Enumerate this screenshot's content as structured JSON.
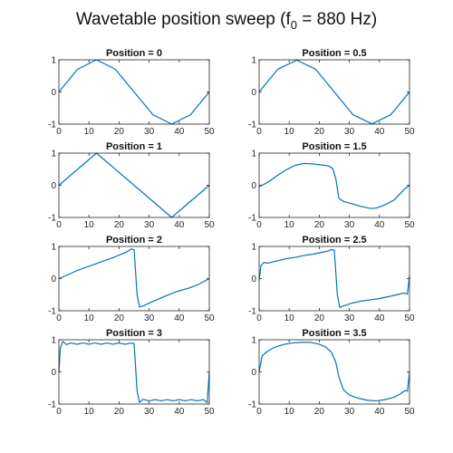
{
  "figure": {
    "title_main": "Wavetable position sweep (f",
    "title_sub": "0",
    "title_tail": " = 880 Hz)"
  },
  "chart_data": [
    {
      "type": "line",
      "title": "Position = 0",
      "xlim": [
        0,
        50
      ],
      "ylim": [
        -1,
        1
      ],
      "xticks": [
        "0",
        "10",
        "20",
        "30",
        "40",
        "50"
      ],
      "yticks": [
        "-1",
        "0",
        "1"
      ],
      "color": "#0072bd",
      "points": [
        [
          0,
          0
        ],
        [
          6.25,
          0.707
        ],
        [
          12.5,
          1
        ],
        [
          18.75,
          0.707
        ],
        [
          25,
          0
        ],
        [
          31.25,
          -0.707
        ],
        [
          37.5,
          -1
        ],
        [
          43.75,
          -0.707
        ],
        [
          50,
          0
        ]
      ]
    },
    {
      "type": "line",
      "title": "Position = 0.5",
      "xlim": [
        0,
        50
      ],
      "ylim": [
        -1,
        1
      ],
      "xticks": [
        "0",
        "10",
        "20",
        "30",
        "40",
        "50"
      ],
      "yticks": [
        "-1",
        "0",
        "1"
      ],
      "color": "#0072bd",
      "points": [
        [
          0,
          0
        ],
        [
          6.25,
          0.71
        ],
        [
          12.5,
          0.99
        ],
        [
          18.75,
          0.71
        ],
        [
          25,
          0
        ],
        [
          31.25,
          -0.71
        ],
        [
          37.5,
          -0.99
        ],
        [
          43.75,
          -0.71
        ],
        [
          50,
          0
        ]
      ]
    },
    {
      "type": "line",
      "title": "Position = 1",
      "xlim": [
        0,
        50
      ],
      "ylim": [
        -1,
        1
      ],
      "xticks": [
        "0",
        "10",
        "20",
        "30",
        "40",
        "50"
      ],
      "yticks": [
        "-1",
        "0",
        "1"
      ],
      "color": "#0072bd",
      "points": [
        [
          0,
          0
        ],
        [
          12.5,
          1
        ],
        [
          37.5,
          -1
        ],
        [
          50,
          0
        ]
      ]
    },
    {
      "type": "line",
      "title": "Position = 1.5",
      "xlim": [
        0,
        50
      ],
      "ylim": [
        -1,
        1
      ],
      "xticks": [
        "0",
        "10",
        "20",
        "30",
        "40",
        "50"
      ],
      "yticks": [
        "-1",
        "0",
        "1"
      ],
      "color": "#0072bd",
      "points": [
        [
          0,
          -0.05
        ],
        [
          3,
          0.1
        ],
        [
          6,
          0.3
        ],
        [
          9,
          0.48
        ],
        [
          12,
          0.62
        ],
        [
          15,
          0.68
        ],
        [
          18,
          0.66
        ],
        [
          21,
          0.63
        ],
        [
          23,
          0.6
        ],
        [
          24.5,
          0.52
        ],
        [
          25.5,
          0.2
        ],
        [
          26.5,
          -0.4
        ],
        [
          28,
          -0.5
        ],
        [
          31,
          -0.58
        ],
        [
          34,
          -0.66
        ],
        [
          37,
          -0.72
        ],
        [
          39,
          -0.71
        ],
        [
          42,
          -0.6
        ],
        [
          45,
          -0.45
        ],
        [
          48,
          -0.15
        ],
        [
          50,
          0.0
        ]
      ]
    },
    {
      "type": "line",
      "title": "Position = 2",
      "xlim": [
        0,
        50
      ],
      "ylim": [
        -1,
        1
      ],
      "xticks": [
        "0",
        "10",
        "20",
        "30",
        "40",
        "50"
      ],
      "yticks": [
        "-1",
        "0",
        "1"
      ],
      "color": "#0072bd",
      "points": [
        [
          0,
          0
        ],
        [
          3,
          0.12
        ],
        [
          6,
          0.25
        ],
        [
          9,
          0.35
        ],
        [
          12,
          0.45
        ],
        [
          15,
          0.55
        ],
        [
          18,
          0.65
        ],
        [
          21,
          0.77
        ],
        [
          23,
          0.85
        ],
        [
          24,
          0.92
        ],
        [
          25,
          0.9
        ],
        [
          26,
          -0.5
        ],
        [
          26.8,
          -0.88
        ],
        [
          28,
          -0.85
        ],
        [
          31,
          -0.72
        ],
        [
          34,
          -0.6
        ],
        [
          37,
          -0.48
        ],
        [
          40,
          -0.38
        ],
        [
          43,
          -0.3
        ],
        [
          46,
          -0.2
        ],
        [
          50,
          0
        ]
      ]
    },
    {
      "type": "line",
      "title": "Position = 2.5",
      "xlim": [
        0,
        50
      ],
      "ylim": [
        -1,
        1
      ],
      "xticks": [
        "0",
        "10",
        "20",
        "30",
        "40",
        "50"
      ],
      "yticks": [
        "-1",
        "0",
        "1"
      ],
      "color": "#0072bd",
      "points": [
        [
          0,
          -0.05
        ],
        [
          0.6,
          0.4
        ],
        [
          1.5,
          0.5
        ],
        [
          3,
          0.48
        ],
        [
          6,
          0.55
        ],
        [
          9,
          0.62
        ],
        [
          12,
          0.66
        ],
        [
          15,
          0.72
        ],
        [
          18,
          0.76
        ],
        [
          21,
          0.82
        ],
        [
          23,
          0.86
        ],
        [
          24,
          0.9
        ],
        [
          25,
          0.88
        ],
        [
          26,
          -0.5
        ],
        [
          26.8,
          -0.9
        ],
        [
          28,
          -0.85
        ],
        [
          31,
          -0.76
        ],
        [
          34,
          -0.7
        ],
        [
          37,
          -0.66
        ],
        [
          40,
          -0.62
        ],
        [
          43,
          -0.56
        ],
        [
          46,
          -0.5
        ],
        [
          48,
          -0.45
        ],
        [
          49.3,
          -0.48
        ],
        [
          50,
          0.1
        ]
      ]
    },
    {
      "type": "line",
      "title": "Position = 3",
      "xlim": [
        0,
        50
      ],
      "ylim": [
        -1,
        1
      ],
      "xticks": [
        "0",
        "10",
        "20",
        "30",
        "40",
        "50"
      ],
      "yticks": [
        "-1",
        "0",
        "1"
      ],
      "color": "#0072bd",
      "points": [
        [
          0,
          0
        ],
        [
          0.5,
          0.75
        ],
        [
          1.3,
          0.95
        ],
        [
          2.5,
          0.85
        ],
        [
          4,
          0.9
        ],
        [
          6,
          0.86
        ],
        [
          8,
          0.9
        ],
        [
          10,
          0.86
        ],
        [
          12,
          0.9
        ],
        [
          14,
          0.86
        ],
        [
          16,
          0.9
        ],
        [
          18,
          0.86
        ],
        [
          20,
          0.9
        ],
        [
          22,
          0.86
        ],
        [
          24,
          0.9
        ],
        [
          25,
          0.88
        ],
        [
          26,
          -0.6
        ],
        [
          26.8,
          -0.95
        ],
        [
          28,
          -0.85
        ],
        [
          30,
          -0.9
        ],
        [
          32,
          -0.86
        ],
        [
          34,
          -0.9
        ],
        [
          36,
          -0.86
        ],
        [
          38,
          -0.9
        ],
        [
          40,
          -0.86
        ],
        [
          42,
          -0.9
        ],
        [
          44,
          -0.86
        ],
        [
          46,
          -0.9
        ],
        [
          48,
          -0.86
        ],
        [
          49.3,
          -0.95
        ],
        [
          50,
          0
        ]
      ]
    },
    {
      "type": "line",
      "title": "Position = 3.5",
      "xlim": [
        0,
        50
      ],
      "ylim": [
        -1,
        1
      ],
      "xticks": [
        "0",
        "10",
        "20",
        "30",
        "40",
        "50"
      ],
      "yticks": [
        "-1",
        "0",
        "1"
      ],
      "color": "#0072bd",
      "points": [
        [
          0,
          0
        ],
        [
          1,
          0.5
        ],
        [
          2.5,
          0.62
        ],
        [
          5,
          0.76
        ],
        [
          8,
          0.85
        ],
        [
          11,
          0.9
        ],
        [
          14,
          0.92
        ],
        [
          17,
          0.92
        ],
        [
          20,
          0.86
        ],
        [
          22,
          0.78
        ],
        [
          24,
          0.62
        ],
        [
          25.5,
          0.3
        ],
        [
          26.5,
          -0.15
        ],
        [
          28,
          -0.55
        ],
        [
          30,
          -0.72
        ],
        [
          33,
          -0.82
        ],
        [
          36,
          -0.88
        ],
        [
          39,
          -0.9
        ],
        [
          42,
          -0.86
        ],
        [
          45,
          -0.78
        ],
        [
          47,
          -0.68
        ],
        [
          48.5,
          -0.58
        ],
        [
          49.3,
          -0.6
        ],
        [
          50,
          0
        ]
      ]
    }
  ]
}
